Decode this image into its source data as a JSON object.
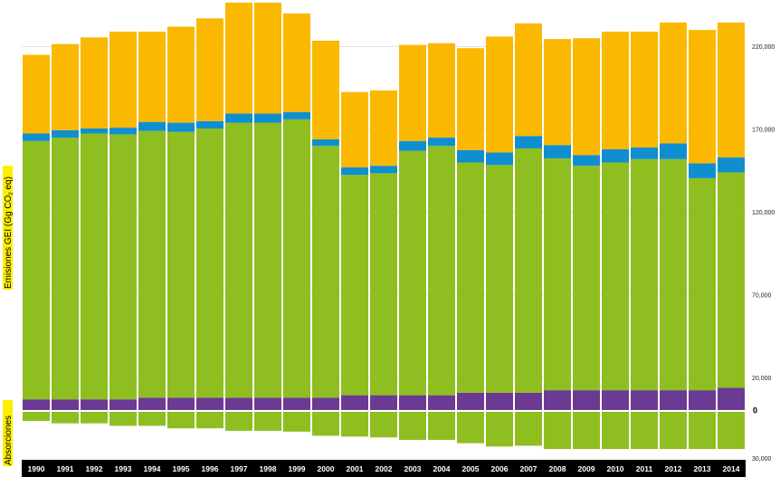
{
  "chart_data": {
    "type": "bar",
    "stacked": true,
    "categories": [
      "1990",
      "1991",
      "1992",
      "1993",
      "1994",
      "1995",
      "1996",
      "1997",
      "1998",
      "1999",
      "2000",
      "2001",
      "2002",
      "2003",
      "2004",
      "2005",
      "2006",
      "2007",
      "2008",
      "2009",
      "2010",
      "2011",
      "2012",
      "2013",
      "2014"
    ],
    "series": [
      {
        "color": "#6b3a92",
        "values": [
          7000,
          7000,
          7000,
          7000,
          8000,
          8000,
          8000,
          8000,
          8000,
          8000,
          8000,
          9500,
          9500,
          9500,
          9500,
          11000,
          11000,
          11000,
          12500,
          12500,
          12500,
          12500,
          12500,
          12500,
          14000
        ]
      },
      {
        "color": "#8fbe21",
        "values": [
          156000,
          158000,
          160500,
          160000,
          161000,
          160500,
          162500,
          166000,
          166000,
          168000,
          152000,
          133000,
          134000,
          147500,
          150500,
          139000,
          137500,
          147500,
          140000,
          135500,
          137500,
          139500,
          139500,
          128000,
          130000
        ]
      },
      {
        "color": "#0f8fd0",
        "values": [
          4500,
          4500,
          3000,
          4000,
          5500,
          5500,
          4500,
          5500,
          5500,
          4500,
          4000,
          4500,
          4500,
          6000,
          5000,
          7500,
          7500,
          7500,
          8000,
          6500,
          8000,
          7000,
          9500,
          9000,
          9000
        ]
      },
      {
        "color": "#fbb800",
        "values": [
          47500,
          52000,
          55000,
          58000,
          54500,
          58000,
          62000,
          67000,
          67000,
          59500,
          59500,
          45500,
          45500,
          58000,
          57000,
          61500,
          70000,
          68000,
          64000,
          70500,
          71000,
          70000,
          73000,
          80500,
          81500
        ]
      },
      {
        "color": "#8fbe21",
        "values": [
          -6000,
          -7500,
          -7500,
          -9000,
          -9000,
          -10500,
          -10500,
          -12000,
          -12000,
          -12500,
          -15000,
          -15500,
          -16000,
          -17500,
          -17500,
          -19500,
          -21500,
          -21000,
          -23000,
          -23000,
          -23000,
          -23000,
          -23000,
          -23000,
          -23000
        ]
      }
    ],
    "ylim": [
      -30000,
      240000
    ],
    "yticks": [
      -30000,
      0,
      20000,
      70000,
      120000,
      170000,
      220000
    ],
    "ytick_labels": [
      "30,000",
      "0",
      "20,000",
      "70,000",
      "120,000",
      "170,000",
      "220,000"
    ],
    "ylabel": "Emisiones GEI (Gg CO2 eq)",
    "ylabel_negative": "Absorciones",
    "grid": true,
    "xlabel": ""
  },
  "colors": {
    "highlight": "#ffee00",
    "axis_bar": "#000000",
    "zero_line": "#ffffff"
  }
}
